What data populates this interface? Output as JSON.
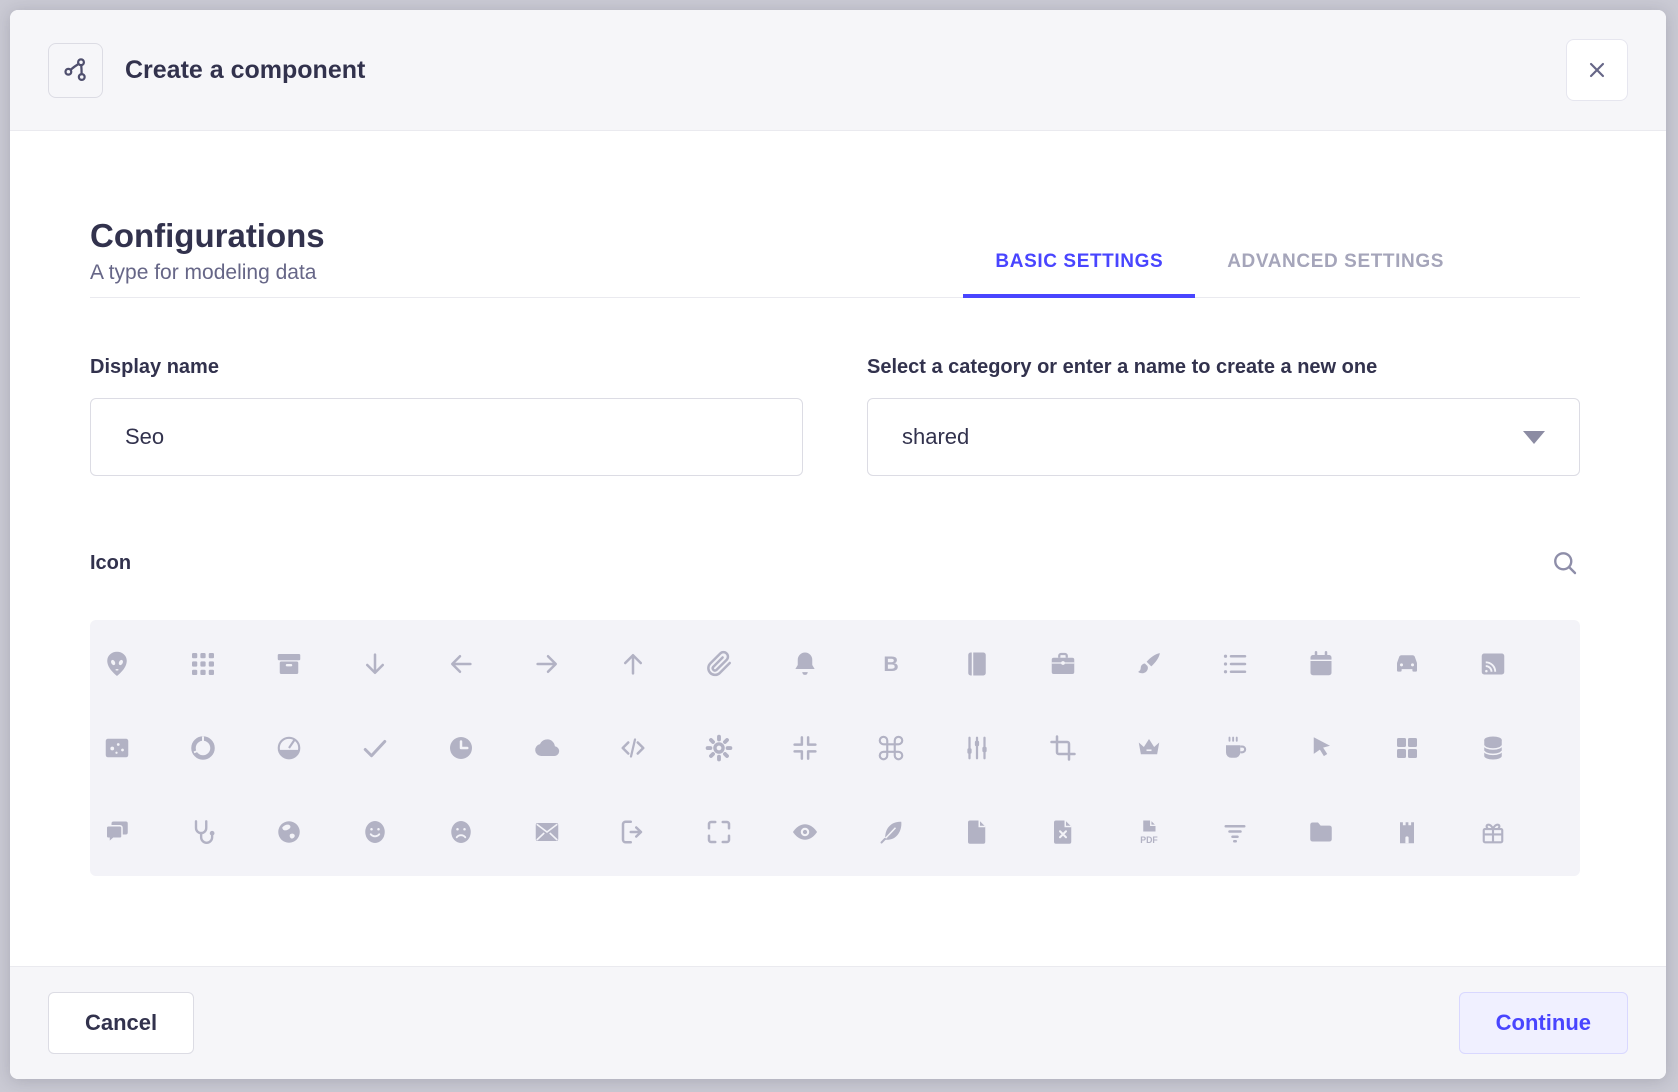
{
  "header": {
    "title": "Create a component"
  },
  "heading": {
    "title": "Configurations",
    "subtitle": "A type for modeling data"
  },
  "tabs": [
    {
      "label": "BASIC SETTINGS",
      "active": true
    },
    {
      "label": "ADVANCED SETTINGS",
      "active": false
    }
  ],
  "form": {
    "display_name": {
      "label": "Display name",
      "value": "Seo"
    },
    "category": {
      "label": "Select a category or enter a name to create a new one",
      "value": "shared"
    }
  },
  "icon_picker": {
    "label": "Icon",
    "grid": [
      "alien",
      "apps",
      "archive",
      "arrow-down",
      "arrow-left",
      "arrow-right",
      "arrow-up",
      "attachment",
      "bell",
      "bold",
      "book",
      "briefcase",
      "brush",
      "bullet-list",
      "calendar",
      "car",
      "cast",
      "chart-bubble",
      "chart-circle",
      "chart-pie",
      "check",
      "clock",
      "cloud",
      "code",
      "cog",
      "collapse",
      "command",
      "sliders",
      "crop",
      "crown",
      "cup",
      "cursor",
      "dashboard",
      "database",
      "discuss",
      "doctor",
      "earth",
      "emotion-happy",
      "emotion-unhappy",
      "envelope",
      "exit",
      "expand",
      "eye",
      "feather",
      "file",
      "file-error",
      "file-pdf",
      "filter",
      "folder",
      "gate",
      "gift"
    ]
  },
  "footer": {
    "cancel_label": "Cancel",
    "continue_label": "Continue"
  },
  "colors": {
    "primary": "#4945ff",
    "text": "#32324d",
    "muted": "#666687",
    "tab_inactive": "#a5a5ba",
    "border": "#dcdce4",
    "divider": "#eaeaef",
    "header_bg": "#f6f6f9",
    "panel_bg": "#f3f3f8",
    "grid_icon": "#b2b2c4",
    "continue_bg": "#f0f0ff",
    "continue_border": "#d9d8ff"
  }
}
